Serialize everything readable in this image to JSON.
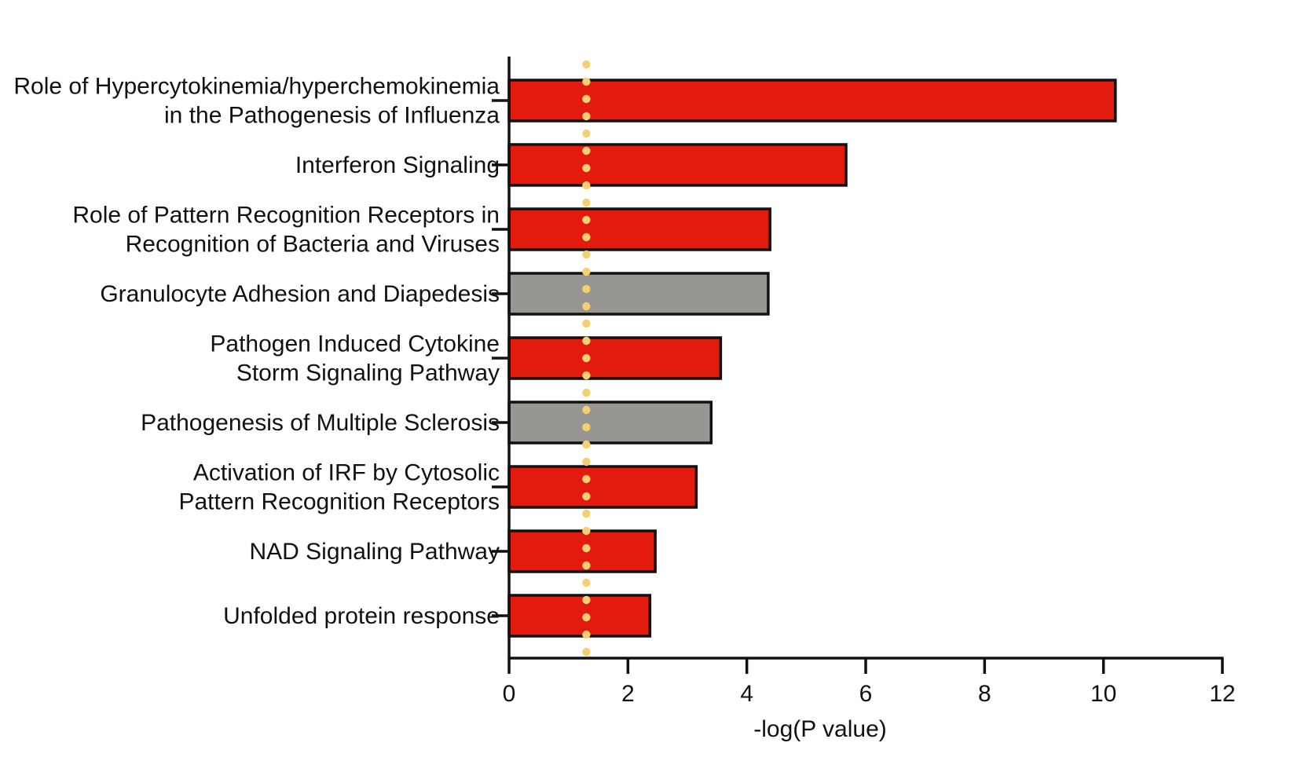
{
  "chart_data": {
    "type": "bar",
    "orientation": "horizontal",
    "title": "",
    "xlabel": "-log(P value)",
    "ylabel": "",
    "xlim": [
      0,
      12
    ],
    "xticks": [
      "0",
      "2",
      "4",
      "6",
      "8",
      "10",
      "12"
    ],
    "grid": false,
    "legend": "none",
    "threshold_line": {
      "value": 1.3,
      "style": "dotted",
      "color": "#F7CF73"
    },
    "categories": [
      [
        "Role of Hypercytokinemia/hyperchemokinemia",
        "in the Pathogenesis of Influenza"
      ],
      [
        "Interferon Signaling"
      ],
      [
        "Role of Pattern Recognition Receptors in",
        "Recognition of Bacteria and Viruses"
      ],
      [
        "Granulocyte Adhesion and Diapedesis"
      ],
      [
        "Pathogen Induced Cytokine",
        "Storm Signaling Pathway"
      ],
      [
        "Pathogenesis of Multiple Sclerosis"
      ],
      [
        "Activation of IRF by Cytosolic",
        "Pattern Recognition Receptors"
      ],
      [
        "NAD Signaling Pathway"
      ],
      [
        "Unfolded protein response"
      ]
    ],
    "values": [
      10.2,
      5.67,
      4.39,
      4.36,
      3.56,
      3.4,
      3.15,
      2.46,
      2.37
    ],
    "bar_colors": [
      "#E31A0E",
      "#E31A0E",
      "#E31A0E",
      "#989693",
      "#E31A0E",
      "#989693",
      "#E31A0E",
      "#E31A0E",
      "#E31A0E"
    ],
    "colors": {
      "red": "#E31A0E",
      "gray": "#989693",
      "outline": "#111111",
      "threshold": "#F7CF73"
    }
  }
}
